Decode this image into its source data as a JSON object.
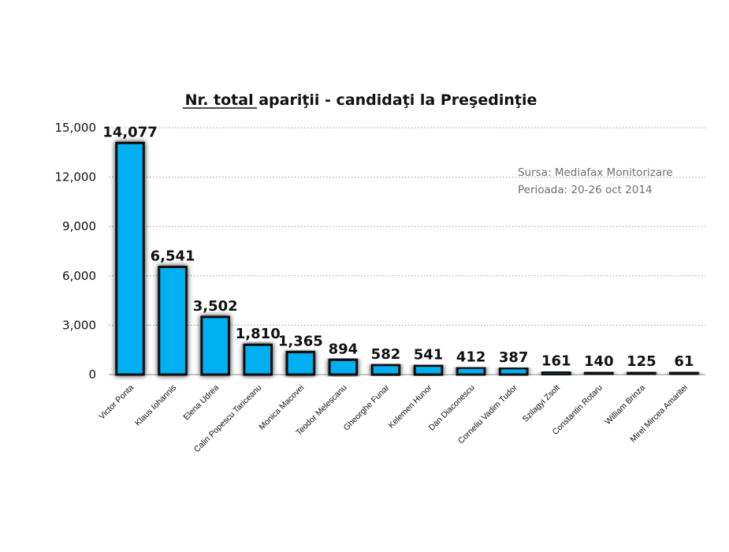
{
  "chart_data": {
    "type": "bar",
    "title": "Nr. total apariţii - candidaţi la Preşedinţie",
    "categories": [
      "Victor Ponta",
      "Klaus Iohannis",
      "Elena Udrea",
      "Calin Popescu Tariceanu",
      "Monica Macovei",
      "Teodor Melescanu",
      "Gheorghe Funar",
      "Kelemen Hunor",
      "Dan Diaconescu",
      "Corneliu Vadim Tudor",
      "Szilagyi Zsolt",
      "Constantin Rotaru",
      "William Brinza",
      "Mirel Mircea Amaritei"
    ],
    "values": [
      14077,
      6541,
      3502,
      1810,
      1365,
      894,
      582,
      541,
      412,
      387,
      161,
      140,
      125,
      61
    ],
    "data_labels": [
      "14,077",
      "6,541",
      "3,502",
      "1,810",
      "1,365",
      "894",
      "582",
      "541",
      "412",
      "387",
      "161",
      "140",
      "125",
      "61"
    ],
    "ylim": [
      0,
      15000
    ],
    "yticks": [
      0,
      3000,
      6000,
      9000,
      12000,
      15000
    ],
    "ytick_labels": [
      "0",
      "3,000",
      "6,000",
      "9,000",
      "12,000",
      "15,000"
    ],
    "grid": true,
    "xlabel": "",
    "ylabel": "",
    "bar_color": "#00b0f0",
    "bar_edge_color": "#111111",
    "annotations": [
      "Sursa: Mediafax Monitorizare",
      "Perioada: 20-26 oct 2014"
    ]
  }
}
